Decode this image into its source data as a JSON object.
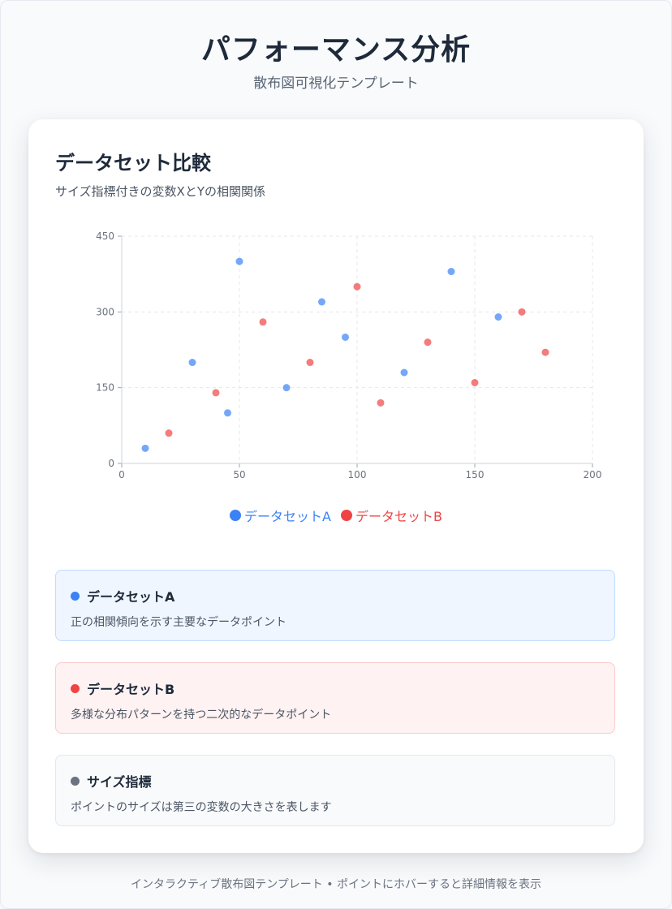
{
  "header": {
    "title": "パフォーマンス分析",
    "subtitle": "散布図可視化テンプレート"
  },
  "card": {
    "title": "データセット比較",
    "subtitle": "サイズ指標付きの変数XとYの相関関係"
  },
  "chart_data": {
    "type": "scatter",
    "xlim": [
      0,
      200
    ],
    "ylim": [
      0,
      450
    ],
    "x_ticks": [
      0,
      50,
      100,
      150,
      200
    ],
    "y_ticks": [
      0,
      150,
      300,
      450
    ],
    "grid": true,
    "legend_position": "bottom-center",
    "series": [
      {
        "name": "データセットA",
        "color": "#3b82f6",
        "points": [
          {
            "x": 10,
            "y": 30
          },
          {
            "x": 30,
            "y": 200
          },
          {
            "x": 45,
            "y": 100
          },
          {
            "x": 50,
            "y": 400
          },
          {
            "x": 70,
            "y": 150
          },
          {
            "x": 85,
            "y": 320
          },
          {
            "x": 95,
            "y": 250
          },
          {
            "x": 120,
            "y": 180
          },
          {
            "x": 140,
            "y": 380
          },
          {
            "x": 160,
            "y": 290
          }
        ]
      },
      {
        "name": "データセットB",
        "color": "#ef4444",
        "points": [
          {
            "x": 20,
            "y": 60
          },
          {
            "x": 40,
            "y": 140
          },
          {
            "x": 60,
            "y": 280
          },
          {
            "x": 80,
            "y": 200
          },
          {
            "x": 100,
            "y": 350
          },
          {
            "x": 110,
            "y": 120
          },
          {
            "x": 130,
            "y": 240
          },
          {
            "x": 150,
            "y": 160
          },
          {
            "x": 170,
            "y": 300
          },
          {
            "x": 180,
            "y": 220
          }
        ]
      }
    ]
  },
  "legend": {
    "a_label": "データセットA",
    "b_label": "データセットB"
  },
  "info": [
    {
      "title": "データセットA",
      "description": "正の相関傾向を示す主要なデータポイント",
      "dot_color": "#3b82f6",
      "bg_color": "#eff6ff",
      "border_color": "#bfdbfe"
    },
    {
      "title": "データセットB",
      "description": "多様な分布パターンを持つ二次的なデータポイント",
      "dot_color": "#ef4444",
      "bg_color": "#fef2f2",
      "border_color": "#fecaca"
    },
    {
      "title": "サイズ指標",
      "description": "ポイントのサイズは第三の変数の大きさを表します",
      "dot_color": "#6b7280",
      "bg_color": "#f8fafc",
      "border_color": "#e5e7eb"
    }
  ],
  "footer": {
    "text": "インタラクティブ散布図テンプレート • ポイントにホバーすると詳細情報を表示"
  }
}
